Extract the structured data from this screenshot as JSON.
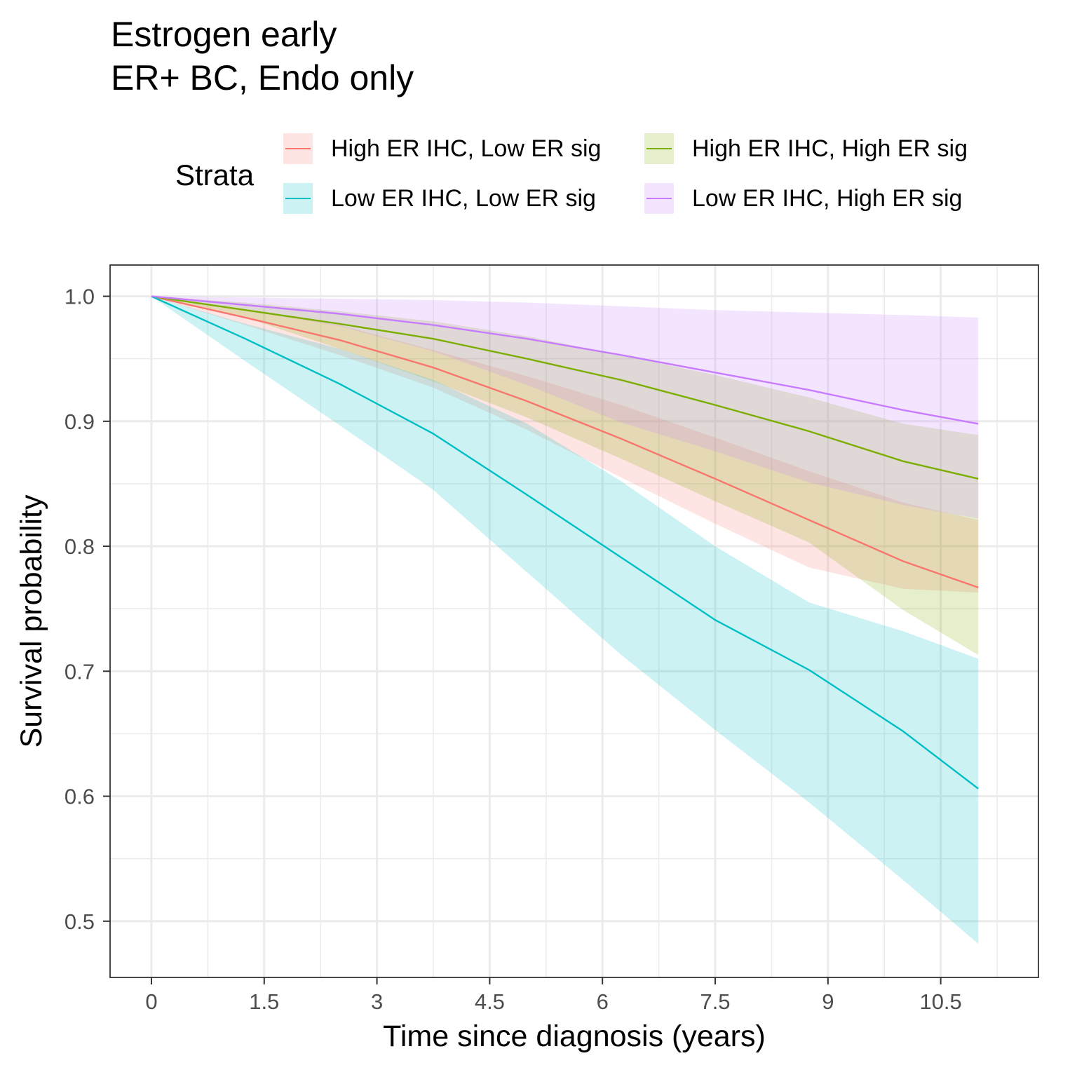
{
  "chart_data": {
    "type": "line",
    "title": "Estrogen early",
    "subtitle": "ER+ BC, Endo only",
    "xlabel": "Time since diagnosis (years)",
    "ylabel": "Survival probability",
    "xlim": [
      -0.55,
      11.8
    ],
    "ylim": [
      0.455,
      1.025
    ],
    "xticks": [
      0,
      1.5,
      3,
      4.5,
      6,
      7.5,
      9,
      10.5
    ],
    "xtick_labels": [
      "0",
      "1.5",
      "3",
      "4.5",
      "6",
      "7.5",
      "9",
      "10.5"
    ],
    "yticks": [
      0.5,
      0.6,
      0.7,
      0.8,
      0.9,
      1.0
    ],
    "ytick_labels": [
      "0.5",
      "0.6",
      "0.7",
      "0.8",
      "0.9",
      "1.0"
    ],
    "grid": true,
    "legend": {
      "title": "Strata",
      "position": "top"
    },
    "series": [
      {
        "name": "High ER IHC, Low ER sig",
        "color": "#F8766D",
        "x": [
          0,
          1.25,
          2.5,
          3.75,
          5,
          6.25,
          7.5,
          8.75,
          10,
          11
        ],
        "y": [
          1.0,
          0.983,
          0.965,
          0.943,
          0.916,
          0.886,
          0.854,
          0.821,
          0.788,
          0.767
        ],
        "lower": [
          1.0,
          0.977,
          0.953,
          0.927,
          0.893,
          0.855,
          0.818,
          0.783,
          0.766,
          0.763
        ],
        "upper": [
          1.0,
          0.989,
          0.977,
          0.957,
          0.936,
          0.913,
          0.887,
          0.86,
          0.835,
          0.821
        ]
      },
      {
        "name": "High ER IHC, High ER sig",
        "color": "#7CAE00",
        "x": [
          0,
          1.25,
          2.5,
          3.75,
          5,
          6.25,
          7.5,
          8.75,
          10,
          11
        ],
        "y": [
          1.0,
          0.989,
          0.978,
          0.966,
          0.95,
          0.933,
          0.913,
          0.892,
          0.868,
          0.854
        ],
        "lower": [
          1.0,
          0.983,
          0.958,
          0.932,
          0.903,
          0.87,
          0.836,
          0.803,
          0.749,
          0.713
        ],
        "upper": [
          1.0,
          0.995,
          0.988,
          0.98,
          0.968,
          0.953,
          0.937,
          0.919,
          0.898,
          0.889
        ]
      },
      {
        "name": "Low ER IHC, Low ER sig",
        "color": "#00BFC4",
        "x": [
          0,
          1.25,
          2.5,
          3.75,
          5,
          6.25,
          7.5,
          8.75,
          10,
          11
        ],
        "y": [
          1.0,
          0.966,
          0.93,
          0.89,
          0.841,
          0.791,
          0.741,
          0.701,
          0.652,
          0.606
        ],
        "lower": [
          1.0,
          0.948,
          0.897,
          0.845,
          0.779,
          0.713,
          0.653,
          0.595,
          0.533,
          0.482
        ],
        "upper": [
          1.0,
          0.978,
          0.958,
          0.933,
          0.898,
          0.852,
          0.8,
          0.755,
          0.732,
          0.71
        ]
      },
      {
        "name": "Low ER IHC, High ER sig",
        "color": "#C77CFF",
        "x": [
          0,
          1.25,
          2.5,
          3.75,
          5,
          6.25,
          7.5,
          8.75,
          10,
          11
        ],
        "y": [
          1.0,
          0.993,
          0.986,
          0.977,
          0.966,
          0.953,
          0.939,
          0.925,
          0.909,
          0.898
        ],
        "lower": [
          1.0,
          0.989,
          0.976,
          0.956,
          0.929,
          0.899,
          0.876,
          0.851,
          0.833,
          0.822
        ],
        "upper": [
          1.0,
          0.999,
          0.998,
          0.997,
          0.995,
          0.992,
          0.989,
          0.987,
          0.985,
          0.983
        ]
      }
    ]
  }
}
